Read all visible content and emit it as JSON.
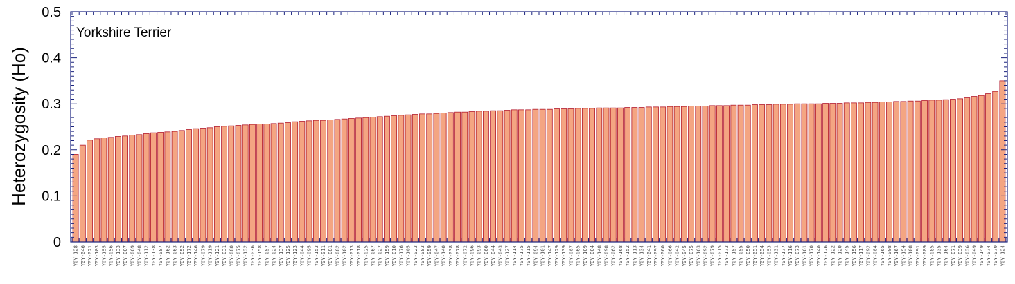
{
  "chart_data": {
    "type": "bar",
    "title": "",
    "annotation": "Yorkshire Terrier",
    "xlabel": "",
    "ylabel": "Heterozygosity (Ho)",
    "ylim": [
      0,
      0.5
    ],
    "yticks": [
      "0",
      "0.1",
      "0.2",
      "0.3",
      "0.4",
      "0.5"
    ],
    "grid": false,
    "legend": "none",
    "colors": {
      "bar_fill": "#f4a582",
      "bar_stroke": "#b2182b",
      "axis": "#1a237e"
    },
    "category_label_prefix": "Y0Y-",
    "categories": [
      "Y0Y-128",
      "Y0Y-046",
      "Y0Y-021",
      "Y0Y-103",
      "Y0Y-155",
      "Y0Y-056",
      "Y0Y-133",
      "Y0Y-007",
      "Y0Y-069",
      "Y0Y-048",
      "Y0Y-112",
      "Y0Y-138",
      "Y0Y-087",
      "Y0Y-162",
      "Y0Y-063",
      "Y0Y-052",
      "Y0Y-172",
      "Y0Y-146",
      "Y0Y-079",
      "Y0Y-119",
      "Y0Y-121",
      "Y0Y-031",
      "Y0Y-080",
      "Y0Y-075",
      "Y0Y-132",
      "Y0Y-036",
      "Y0Y-158",
      "Y0Y-057",
      "Y0Y-024",
      "Y0Y-137",
      "Y0Y-125",
      "Y0Y-123",
      "Y0Y-044",
      "Y0Y-095",
      "Y0Y-153",
      "Y0Y-011",
      "Y0Y-081",
      "Y0Y-082",
      "Y0Y-102",
      "Y0Y-013",
      "Y0Y-018",
      "Y0Y-025",
      "Y0Y-067",
      "Y0Y-027",
      "Y0Y-159",
      "Y0Y-010",
      "Y0Y-176",
      "Y0Y-105",
      "Y0Y-023",
      "Y0Y-083",
      "Y0Y-059",
      "Y0Y-047",
      "Y0Y-140",
      "Y0Y-038",
      "Y0Y-078",
      "Y0Y-072",
      "Y0Y-096",
      "Y0Y-093",
      "Y0Y-060",
      "Y0Y-044",
      "Y0Y-043",
      "Y0Y-127",
      "Y0Y-114",
      "Y0Y-175",
      "Y0Y-115",
      "Y0Y-094",
      "Y0Y-101",
      "Y0Y-147",
      "Y0Y-129",
      "Y0Y-139",
      "Y0Y-087",
      "Y0Y-065",
      "Y0Y-109",
      "Y0Y-004",
      "Y0Y-148",
      "Y0Y-098",
      "Y0Y-062",
      "Y0Y-168",
      "Y0Y-152",
      "Y0Y-113",
      "Y0Y-134",
      "Y0Y-041",
      "Y0Y-097",
      "Y0Y-060",
      "Y0Y-066",
      "Y0Y-042",
      "Y0Y-045",
      "Y0Y-075",
      "Y0Y-163",
      "Y0Y-092",
      "Y0Y-079",
      "Y0Y-015",
      "Y0Y-173",
      "Y0Y-157",
      "Y0Y-055",
      "Y0Y-050",
      "Y0Y-051",
      "Y0Y-054",
      "Y0Y-053",
      "Y0Y-131",
      "Y0Y-177",
      "Y0Y-116",
      "Y0Y-073",
      "Y0Y-161",
      "Y0Y-170",
      "Y0Y-140",
      "Y0Y-126",
      "Y0Y-122",
      "Y0Y-120",
      "Y0Y-145",
      "Y0Y-156",
      "Y0Y-117",
      "Y0Y-092",
      "Y0Y-084",
      "Y0Y-165",
      "Y0Y-008",
      "Y0Y-167",
      "Y0Y-154",
      "Y0Y-108",
      "Y0Y-091",
      "Y0Y-089",
      "Y0Y-085",
      "Y0Y-135",
      "Y0Y-164",
      "Y0Y-071",
      "Y0Y-039",
      "Y0Y-036",
      "Y0Y-049",
      "Y0Y-149",
      "Y0Y-074",
      "Y0Y-070",
      "Y0Y-124"
    ],
    "values": [
      0.19,
      0.21,
      0.221,
      0.224,
      0.226,
      0.227,
      0.229,
      0.23,
      0.232,
      0.233,
      0.235,
      0.237,
      0.238,
      0.239,
      0.24,
      0.242,
      0.244,
      0.246,
      0.247,
      0.248,
      0.25,
      0.251,
      0.252,
      0.253,
      0.254,
      0.255,
      0.256,
      0.256,
      0.257,
      0.258,
      0.259,
      0.261,
      0.262,
      0.263,
      0.264,
      0.264,
      0.265,
      0.266,
      0.267,
      0.268,
      0.269,
      0.27,
      0.271,
      0.272,
      0.273,
      0.274,
      0.275,
      0.276,
      0.277,
      0.278,
      0.278,
      0.279,
      0.28,
      0.281,
      0.282,
      0.282,
      0.283,
      0.284,
      0.284,
      0.285,
      0.285,
      0.286,
      0.287,
      0.287,
      0.287,
      0.288,
      0.288,
      0.288,
      0.289,
      0.289,
      0.289,
      0.29,
      0.29,
      0.29,
      0.291,
      0.291,
      0.291,
      0.291,
      0.292,
      0.292,
      0.292,
      0.293,
      0.293,
      0.293,
      0.294,
      0.294,
      0.294,
      0.295,
      0.295,
      0.295,
      0.296,
      0.296,
      0.296,
      0.297,
      0.297,
      0.297,
      0.298,
      0.298,
      0.298,
      0.299,
      0.299,
      0.299,
      0.3,
      0.3,
      0.3,
      0.3,
      0.301,
      0.301,
      0.301,
      0.302,
      0.302,
      0.302,
      0.303,
      0.303,
      0.304,
      0.304,
      0.305,
      0.305,
      0.306,
      0.306,
      0.307,
      0.308,
      0.308,
      0.309,
      0.31,
      0.311,
      0.313,
      0.316,
      0.318,
      0.322,
      0.327,
      0.35
    ]
  }
}
